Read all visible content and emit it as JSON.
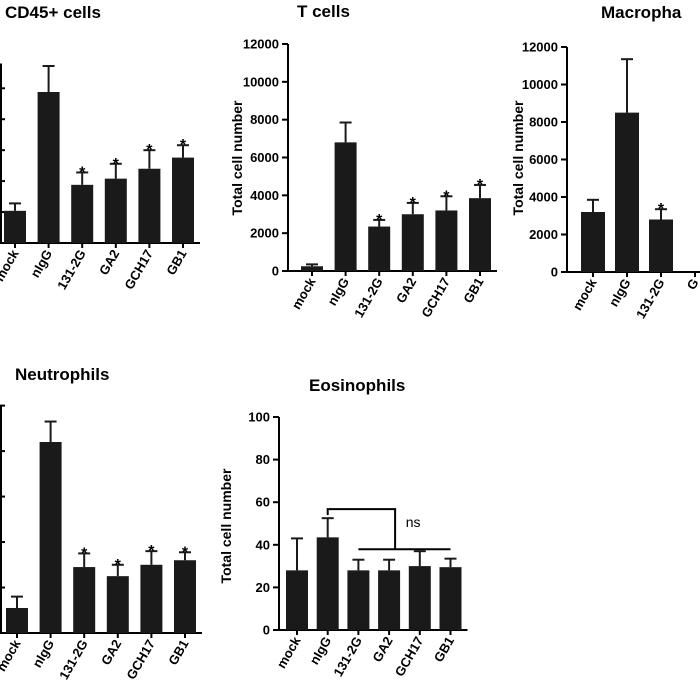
{
  "chart_data": [
    {
      "type": "bar",
      "title": "CD45+ cells",
      "ylabel": "",
      "categories": [
        "mock",
        "nIgG",
        "131-2G",
        "GA2",
        "GCH17",
        "GB1"
      ],
      "values": [
        2600,
        12200,
        4700,
        5200,
        6000,
        6900
      ],
      "errors": [
        600,
        2100,
        1000,
        1200,
        1500,
        1000
      ],
      "significance": [
        "",
        "",
        "*",
        "*",
        "*",
        "*"
      ]
    },
    {
      "type": "bar",
      "title": "T cells",
      "ylabel": "Total cell number",
      "categories": [
        "mock",
        "nIgG",
        "131-2G",
        "GA2",
        "GCH17",
        "GB1"
      ],
      "values": [
        250,
        6800,
        2350,
        3000,
        3200,
        3850
      ],
      "errors": [
        100,
        1050,
        350,
        600,
        750,
        700
      ],
      "ylim": [
        0,
        12000
      ],
      "yticks": [
        "0",
        "2000",
        "4000",
        "6000",
        "8000",
        "10000",
        "12000"
      ],
      "significance": [
        "",
        "",
        "*",
        "*",
        "*",
        "*"
      ]
    },
    {
      "type": "bar",
      "title": "Macropha",
      "ylabel": "Total cell number",
      "categories": [
        "mock",
        "nIgG",
        "131-2G",
        "G"
      ],
      "values": [
        3200,
        8500,
        2800,
        0
      ],
      "errors": [
        650,
        2850,
        550,
        0
      ],
      "ylim": [
        0,
        12000
      ],
      "yticks": [
        "0",
        "2000",
        "4000",
        "6000",
        "8000",
        "10000",
        "12000"
      ],
      "significance": [
        "",
        "",
        "*",
        ""
      ]
    },
    {
      "type": "bar",
      "title": "Neutrophils",
      "ylabel": "",
      "categories": [
        "mock",
        "nIgG",
        "131-2G",
        "GA2",
        "GCH17",
        "GB1"
      ],
      "values": [
        1100,
        8400,
        2900,
        2500,
        3000,
        3200
      ],
      "errors": [
        500,
        900,
        600,
        500,
        600,
        350
      ],
      "significance": [
        "",
        "",
        "*",
        "*",
        "*",
        "*"
      ]
    },
    {
      "type": "bar",
      "title": "Eosinophils",
      "ylabel": "Total cell number",
      "categories": [
        "mock",
        "nIgG",
        "131-2G",
        "GA2",
        "GCH17",
        "GB1"
      ],
      "values": [
        28,
        43.5,
        28,
        28,
        30,
        29.5
      ],
      "errors": [
        15,
        9,
        5,
        5,
        7,
        4
      ],
      "ylim": [
        0,
        100
      ],
      "yticks": [
        "0",
        "20",
        "40",
        "60",
        "80",
        "100"
      ],
      "annotation": "ns"
    }
  ]
}
